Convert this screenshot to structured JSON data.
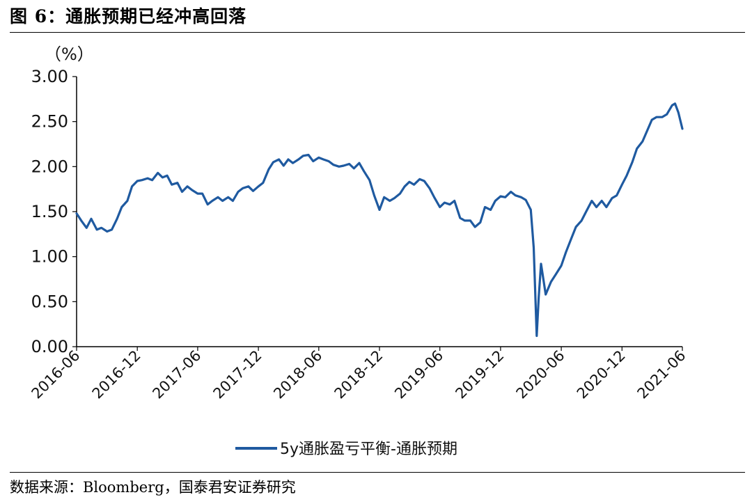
{
  "header": {
    "title": "图 6：通胀预期已经冲高回落"
  },
  "footer": {
    "source": "数据来源：Bloomberg，国泰君安证券研究"
  },
  "chart_data": {
    "type": "line",
    "ylabel": "（%）",
    "ylim": [
      0,
      3
    ],
    "yticks": [
      "0.00",
      "0.50",
      "1.00",
      "1.50",
      "2.00",
      "2.50",
      "3.00"
    ],
    "xlim": [
      "2016-06",
      "2021-06"
    ],
    "xticks": [
      "2016-06",
      "2016-12",
      "2017-06",
      "2017-12",
      "2018-06",
      "2018-12",
      "2019-06",
      "2019-12",
      "2020-06",
      "2020-12",
      "2021-06"
    ],
    "grid": false,
    "legend_position": "bottom-center",
    "series": [
      {
        "name": "5y通胀盈亏平衡-通胀预期",
        "color": "#1f5aa0",
        "x": [
          "2016-06-01",
          "2016-06-15",
          "2016-07-01",
          "2016-07-15",
          "2016-08-01",
          "2016-08-15",
          "2016-09-01",
          "2016-09-15",
          "2016-10-01",
          "2016-10-15",
          "2016-11-01",
          "2016-11-15",
          "2016-12-01",
          "2016-12-15",
          "2017-01-01",
          "2017-01-15",
          "2017-02-01",
          "2017-02-15",
          "2017-03-01",
          "2017-03-15",
          "2017-04-01",
          "2017-04-15",
          "2017-05-01",
          "2017-05-15",
          "2017-06-01",
          "2017-06-15",
          "2017-07-01",
          "2017-07-15",
          "2017-08-01",
          "2017-08-15",
          "2017-09-01",
          "2017-09-15",
          "2017-10-01",
          "2017-10-15",
          "2017-11-01",
          "2017-11-15",
          "2017-12-01",
          "2017-12-15",
          "2018-01-01",
          "2018-01-15",
          "2018-02-01",
          "2018-02-15",
          "2018-03-01",
          "2018-03-15",
          "2018-04-01",
          "2018-04-15",
          "2018-05-01",
          "2018-05-15",
          "2018-06-01",
          "2018-06-15",
          "2018-07-01",
          "2018-07-15",
          "2018-08-01",
          "2018-08-15",
          "2018-09-01",
          "2018-09-15",
          "2018-10-01",
          "2018-10-15",
          "2018-11-01",
          "2018-11-15",
          "2018-12-01",
          "2018-12-15",
          "2019-01-01",
          "2019-01-15",
          "2019-02-01",
          "2019-02-15",
          "2019-03-01",
          "2019-03-15",
          "2019-04-01",
          "2019-04-15",
          "2019-05-01",
          "2019-05-15",
          "2019-06-01",
          "2019-06-15",
          "2019-07-01",
          "2019-07-15",
          "2019-08-01",
          "2019-08-15",
          "2019-09-01",
          "2019-09-15",
          "2019-10-01",
          "2019-10-15",
          "2019-11-01",
          "2019-11-15",
          "2019-12-01",
          "2019-12-15",
          "2020-01-01",
          "2020-01-15",
          "2020-02-01",
          "2020-02-15",
          "2020-03-01",
          "2020-03-10",
          "2020-03-19",
          "2020-03-25",
          "2020-04-01",
          "2020-04-15",
          "2020-05-01",
          "2020-05-15",
          "2020-06-01",
          "2020-06-15",
          "2020-07-01",
          "2020-07-15",
          "2020-08-01",
          "2020-08-15",
          "2020-09-01",
          "2020-09-15",
          "2020-10-01",
          "2020-10-15",
          "2020-11-01",
          "2020-11-15",
          "2020-12-01",
          "2020-12-15",
          "2021-01-01",
          "2021-01-15",
          "2021-02-01",
          "2021-02-15",
          "2021-03-01",
          "2021-03-15",
          "2021-04-01",
          "2021-04-15",
          "2021-05-01",
          "2021-05-10",
          "2021-05-20",
          "2021-06-01"
        ],
        "y": [
          1.48,
          1.4,
          1.32,
          1.42,
          1.3,
          1.32,
          1.28,
          1.3,
          1.42,
          1.55,
          1.62,
          1.78,
          1.84,
          1.85,
          1.87,
          1.85,
          1.93,
          1.88,
          1.9,
          1.8,
          1.82,
          1.72,
          1.78,
          1.74,
          1.7,
          1.7,
          1.58,
          1.62,
          1.66,
          1.62,
          1.66,
          1.62,
          1.72,
          1.76,
          1.78,
          1.73,
          1.78,
          1.82,
          1.97,
          2.05,
          2.08,
          2.01,
          2.08,
          2.04,
          2.08,
          2.12,
          2.13,
          2.06,
          2.1,
          2.08,
          2.06,
          2.02,
          2.0,
          2.01,
          2.03,
          1.98,
          2.04,
          1.95,
          1.85,
          1.68,
          1.52,
          1.66,
          1.62,
          1.65,
          1.7,
          1.78,
          1.83,
          1.8,
          1.86,
          1.84,
          1.76,
          1.66,
          1.55,
          1.6,
          1.58,
          1.62,
          1.43,
          1.4,
          1.4,
          1.33,
          1.38,
          1.55,
          1.52,
          1.62,
          1.67,
          1.66,
          1.72,
          1.68,
          1.66,
          1.63,
          1.52,
          1.1,
          0.12,
          0.55,
          0.92,
          0.58,
          0.72,
          0.8,
          0.9,
          1.05,
          1.2,
          1.33,
          1.4,
          1.5,
          1.62,
          1.55,
          1.62,
          1.55,
          1.65,
          1.68,
          1.8,
          1.9,
          2.05,
          2.2,
          2.28,
          2.4,
          2.52,
          2.55,
          2.55,
          2.58,
          2.68,
          2.7,
          2.6,
          2.42
        ]
      }
    ]
  }
}
